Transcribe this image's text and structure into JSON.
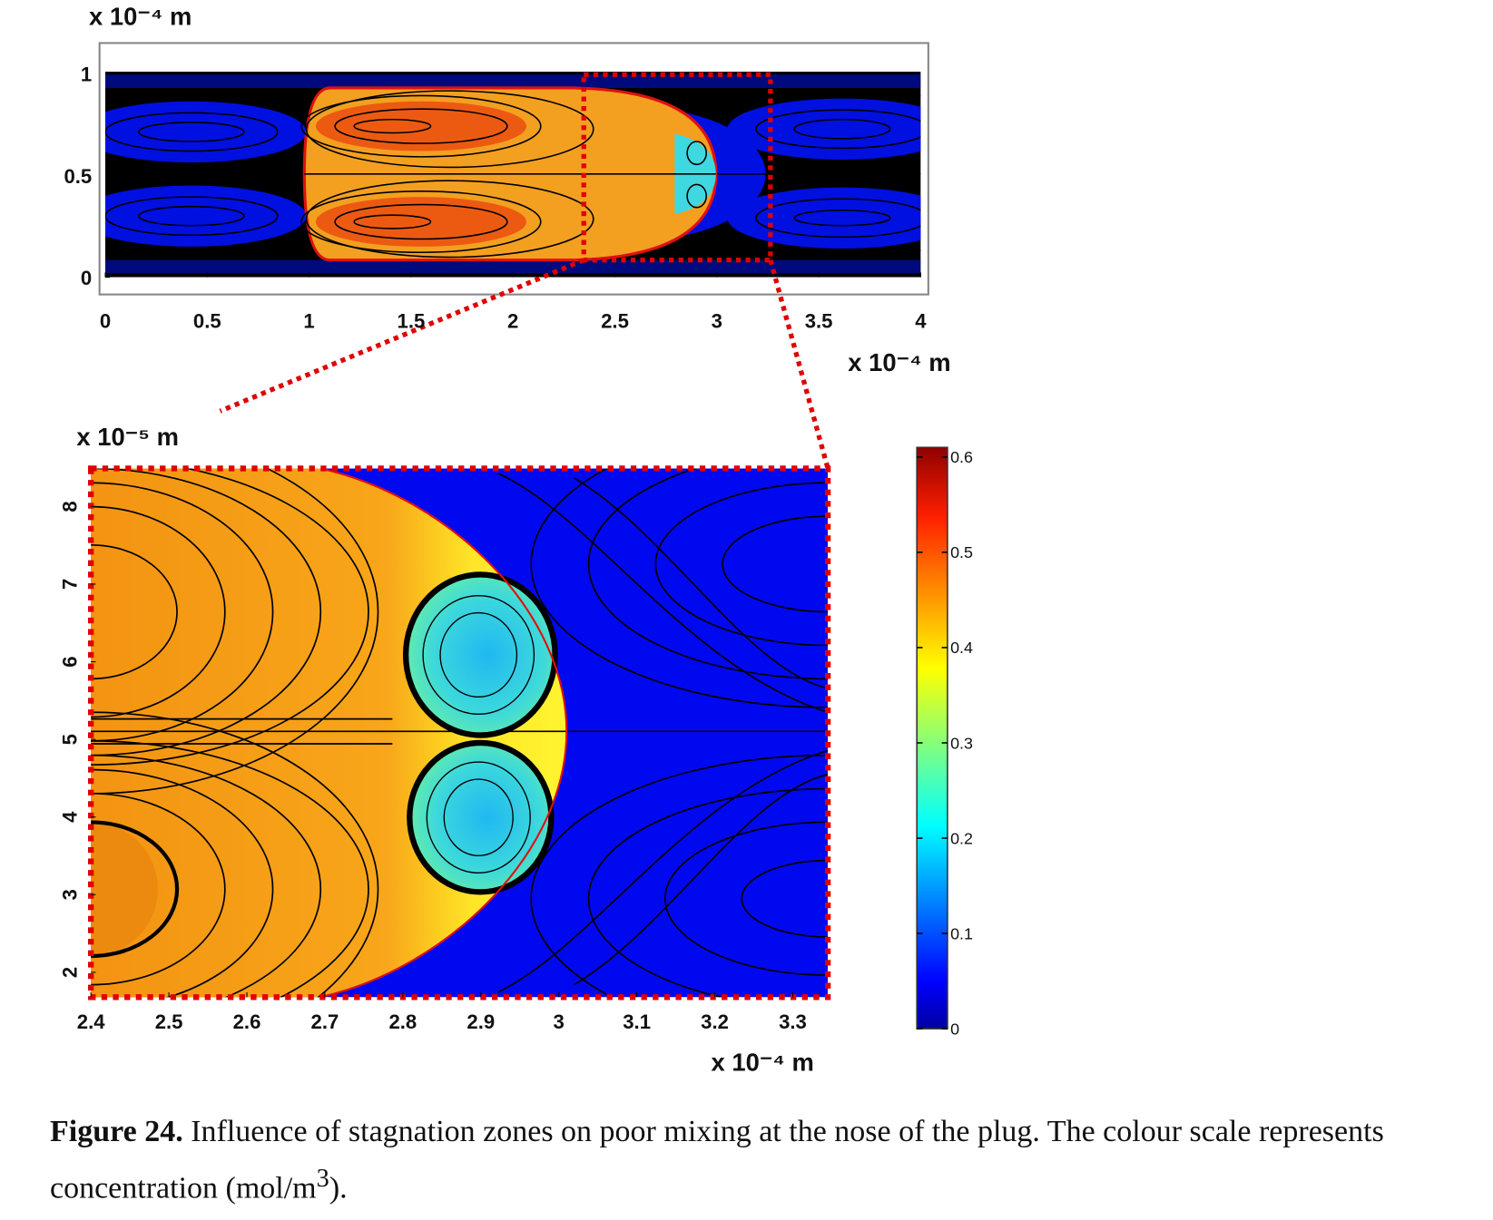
{
  "chart_data": [
    {
      "type": "contour",
      "x_unit": "x 10⁻⁴ m",
      "y_unit": "x 10⁻⁴ m",
      "xlim": [
        0,
        4
      ],
      "xticks": [
        0,
        0.5,
        1,
        1.5,
        2,
        2.5,
        3,
        3.5,
        4
      ],
      "ylim": [
        0,
        1
      ],
      "yticks": [
        0,
        0.5,
        1
      ]
    },
    {
      "type": "contour",
      "x_unit": "x 10⁻⁴ m",
      "y_unit": "x 10⁻⁵ m",
      "xlim": [
        2.4,
        3.345
      ],
      "xticks": [
        2.4,
        2.5,
        2.6,
        2.7,
        2.8,
        2.9,
        3,
        3.1,
        3.2,
        3.3
      ],
      "ylim": [
        1.68,
        8.49
      ],
      "yticks": [
        2,
        3,
        4,
        5,
        6,
        7,
        8
      ]
    },
    {
      "type": "colorbar",
      "ylim": [
        0,
        0.6
      ],
      "yticks": [
        0,
        0.1,
        0.2,
        0.3,
        0.4,
        0.5,
        0.6
      ]
    }
  ],
  "caption": {
    "label": "Figure 24.",
    "text": "Influence of stagnation zones on poor mixing at the nose of the plug. The colour scale represents concentration (mol/m",
    "superscript": "3",
    "end": ")."
  }
}
